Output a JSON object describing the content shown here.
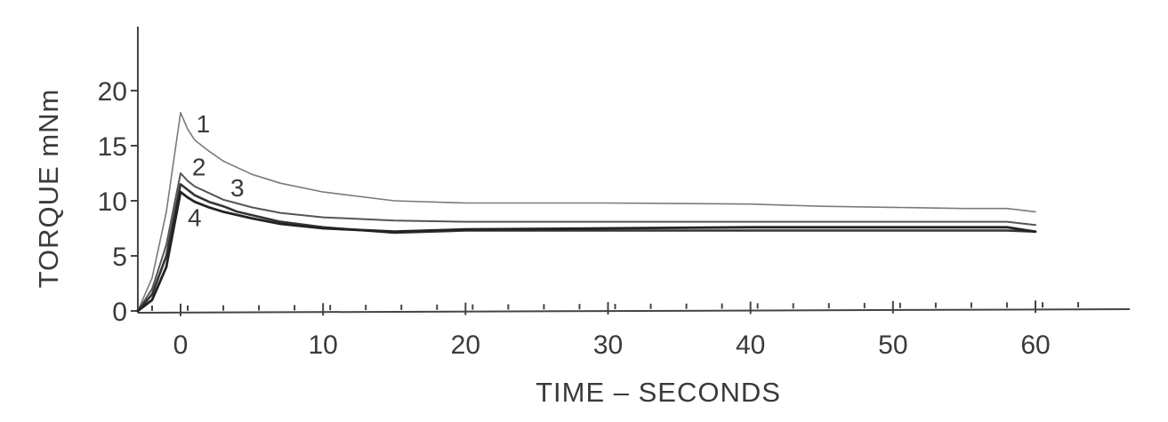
{
  "chart_data": {
    "type": "line",
    "xlabel": "TIME – SECONDS",
    "ylabel": "TORQUE mNm",
    "xlim": [
      -3,
      66
    ],
    "ylim": [
      0,
      25
    ],
    "xticks": [
      0,
      10,
      20,
      30,
      40,
      50,
      60
    ],
    "yticks": [
      0,
      5,
      10,
      15,
      20
    ],
    "grid": false,
    "series": [
      {
        "name": "1",
        "color": "#7a7a7a",
        "x": [
          -3,
          -2,
          -1,
          0,
          0.5,
          1,
          2,
          3,
          5,
          7,
          10,
          15,
          20,
          30,
          40,
          45,
          50,
          55,
          58,
          60
        ],
        "y": [
          0,
          3,
          9,
          18,
          16.5,
          15.5,
          14.5,
          13.6,
          12.4,
          11.6,
          10.8,
          10.0,
          9.8,
          9.8,
          9.7,
          9.5,
          9.4,
          9.3,
          9.3,
          9.0
        ]
      },
      {
        "name": "2",
        "color": "#555555",
        "x": [
          -3,
          -2,
          -1,
          0,
          0.5,
          1,
          2,
          3,
          5,
          7,
          10,
          15,
          20,
          30,
          40,
          50,
          58,
          60
        ],
        "y": [
          0,
          2,
          6,
          12.5,
          11.8,
          11.3,
          10.7,
          10.1,
          9.4,
          8.9,
          8.5,
          8.2,
          8.1,
          8.1,
          8.1,
          8.1,
          8.1,
          7.8
        ]
      },
      {
        "name": "3",
        "color": "#333333",
        "x": [
          -3,
          -2,
          -1,
          0,
          0.5,
          1,
          2,
          3,
          4,
          5,
          7,
          10,
          15,
          20,
          30,
          40,
          50,
          58,
          60
        ],
        "y": [
          0,
          1.5,
          5,
          11.5,
          11.0,
          10.5,
          9.9,
          9.5,
          9.0,
          8.7,
          8.1,
          7.6,
          7.1,
          7.3,
          7.3,
          7.3,
          7.3,
          7.3,
          7.2
        ]
      },
      {
        "name": "4",
        "color": "#222222",
        "x": [
          -3,
          -2,
          -1,
          0,
          0.5,
          1,
          2,
          3,
          5,
          7,
          10,
          15,
          20,
          30,
          40,
          50,
          58,
          60
        ],
        "y": [
          0,
          1,
          4,
          10.8,
          10.3,
          9.9,
          9.4,
          9.0,
          8.4,
          7.9,
          7.5,
          7.2,
          7.4,
          7.5,
          7.6,
          7.6,
          7.6,
          7.2
        ]
      }
    ],
    "curve_labels": [
      "1",
      "2",
      "3",
      "4"
    ]
  }
}
